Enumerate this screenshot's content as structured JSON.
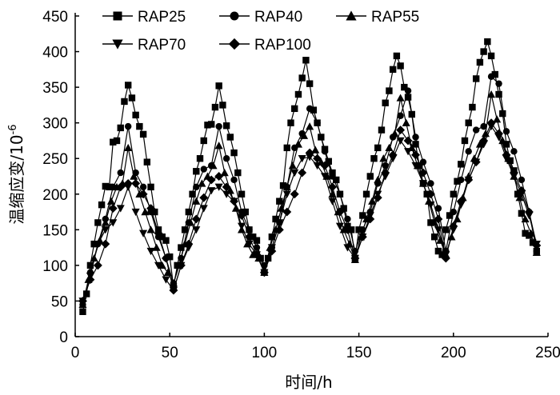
{
  "chart_data": {
    "type": "line",
    "title": "",
    "xlabel": "时间/h",
    "ylabel_main": "温缩应变/10",
    "ylabel_exp": "-6",
    "xlim": [
      0,
      250
    ],
    "ylim": [
      0,
      450
    ],
    "xticks": [
      0,
      50,
      100,
      150,
      200,
      250
    ],
    "yticks": [
      0,
      50,
      100,
      150,
      200,
      250,
      300,
      350,
      400,
      450
    ],
    "grid": false,
    "legend_position": "top-left",
    "series": [
      {
        "name": "RAP25",
        "marker": "square",
        "x": [
          4,
          6,
          8,
          10,
          12,
          14,
          16,
          18,
          20,
          22,
          24,
          26,
          28,
          30,
          32,
          34,
          36,
          38,
          40,
          42,
          44,
          46,
          48,
          50,
          52,
          54,
          56,
          58,
          60,
          62,
          64,
          66,
          68,
          70,
          72,
          74,
          76,
          78,
          80,
          82,
          84,
          86,
          88,
          90,
          92,
          94,
          96,
          98,
          100,
          102,
          104,
          106,
          108,
          110,
          112,
          114,
          116,
          118,
          120,
          122,
          124,
          126,
          128,
          130,
          132,
          134,
          136,
          138,
          140,
          142,
          144,
          146,
          148,
          150,
          152,
          154,
          156,
          158,
          160,
          162,
          164,
          166,
          168,
          170,
          172,
          174,
          176,
          178,
          180,
          182,
          184,
          186,
          188,
          190,
          192,
          194,
          196,
          198,
          200,
          202,
          204,
          206,
          208,
          210,
          212,
          214,
          216,
          218,
          220,
          222,
          224,
          226,
          228,
          230,
          232,
          234,
          236,
          238,
          240,
          242,
          244
        ],
        "y": [
          35,
          60,
          100,
          130,
          160,
          185,
          211,
          210,
          273,
          275,
          293,
          330,
          353,
          335,
          311,
          295,
          284,
          245,
          210,
          175,
          150,
          140,
          135,
          112,
          70,
          100,
          125,
          150,
          175,
          200,
          232,
          250,
          275,
          297,
          298,
          322,
          352,
          325,
          296,
          280,
          258,
          230,
          200,
          175,
          150,
          140,
          135,
          110,
          90,
          110,
          140,
          165,
          190,
          212,
          265,
          300,
          320,
          340,
          363,
          388,
          355,
          318,
          300,
          280,
          263,
          246,
          230,
          220,
          200,
          180,
          155,
          150,
          110,
          150,
          170,
          200,
          225,
          250,
          265,
          290,
          328,
          345,
          375,
          394,
          380,
          350,
          336,
          312,
          270,
          240,
          215,
          200,
          160,
          140,
          120,
          115,
          150,
          170,
          200,
          218,
          242,
          275,
          300,
          322,
          362,
          385,
          400,
          414,
          394,
          368,
          340,
          313,
          270,
          247,
          233,
          200,
          173,
          145,
          142,
          132,
          120
        ]
      },
      {
        "name": "RAP40",
        "marker": "circle",
        "x": [
          4,
          8,
          12,
          16,
          20,
          24,
          28,
          32,
          36,
          40,
          44,
          48,
          52,
          56,
          60,
          64,
          68,
          72,
          76,
          80,
          84,
          88,
          92,
          96,
          100,
          104,
          108,
          112,
          116,
          120,
          124,
          128,
          132,
          136,
          140,
          144,
          148,
          152,
          156,
          160,
          164,
          168,
          172,
          176,
          180,
          184,
          188,
          192,
          196,
          200,
          204,
          208,
          212,
          216,
          220,
          224,
          228,
          232,
          236,
          240,
          244
        ],
        "y": [
          45,
          90,
          130,
          165,
          210,
          230,
          295,
          230,
          210,
          175,
          140,
          110,
          75,
          110,
          160,
          210,
          235,
          240,
          295,
          250,
          220,
          175,
          150,
          125,
          100,
          125,
          160,
          210,
          265,
          285,
          320,
          300,
          260,
          225,
          200,
          165,
          120,
          150,
          175,
          215,
          240,
          280,
          310,
          345,
          280,
          245,
          215,
          180,
          120,
          175,
          220,
          260,
          290,
          295,
          365,
          355,
          288,
          260,
          220,
          175,
          120
        ]
      },
      {
        "name": "RAP55",
        "marker": "triangle-up",
        "x": [
          4,
          7,
          10,
          13,
          16,
          19,
          22,
          25,
          28,
          31,
          34,
          37,
          40,
          43,
          46,
          49,
          52,
          55,
          58,
          61,
          64,
          67,
          70,
          73,
          76,
          79,
          82,
          85,
          88,
          91,
          94,
          97,
          100,
          103,
          106,
          109,
          112,
          115,
          118,
          121,
          124,
          127,
          130,
          133,
          136,
          139,
          142,
          145,
          148,
          151,
          154,
          157,
          160,
          163,
          166,
          169,
          172,
          175,
          178,
          181,
          184,
          187,
          190,
          193,
          196,
          199,
          202,
          205,
          208,
          211,
          214,
          217,
          220,
          223,
          226,
          229,
          232,
          235,
          238,
          241,
          244
        ],
        "y": [
          45,
          80,
          110,
          135,
          160,
          190,
          210,
          215,
          265,
          225,
          200,
          175,
          150,
          125,
          100,
          90,
          75,
          100,
          130,
          160,
          190,
          215,
          225,
          240,
          268,
          230,
          205,
          180,
          150,
          130,
          115,
          110,
          90,
          125,
          150,
          180,
          210,
          240,
          270,
          282,
          295,
          262,
          245,
          225,
          200,
          175,
          150,
          130,
          108,
          140,
          165,
          190,
          220,
          250,
          265,
          285,
          335,
          300,
          265,
          240,
          215,
          190,
          160,
          135,
          115,
          140,
          165,
          195,
          225,
          250,
          270,
          285,
          340,
          305,
          275,
          250,
          225,
          195,
          165,
          145,
          118
        ]
      },
      {
        "name": "RAP70",
        "marker": "triangle-down",
        "x": [
          4,
          8,
          12,
          16,
          20,
          24,
          28,
          32,
          36,
          40,
          44,
          48,
          52,
          56,
          60,
          64,
          68,
          72,
          76,
          80,
          84,
          88,
          92,
          96,
          100,
          104,
          108,
          112,
          116,
          120,
          124,
          128,
          132,
          136,
          140,
          144,
          148,
          152,
          156,
          160,
          164,
          168,
          172,
          176,
          180,
          184,
          188,
          192,
          196,
          200,
          204,
          208,
          212,
          216,
          220,
          224,
          228,
          232,
          236,
          240,
          244
        ],
        "y": [
          50,
          85,
          130,
          150,
          160,
          180,
          210,
          175,
          145,
          120,
          100,
          80,
          65,
          100,
          125,
          150,
          180,
          205,
          210,
          200,
          190,
          155,
          130,
          115,
          90,
          125,
          160,
          200,
          230,
          250,
          252,
          240,
          225,
          190,
          155,
          125,
          110,
          140,
          170,
          200,
          225,
          250,
          275,
          260,
          240,
          215,
          185,
          150,
          115,
          150,
          185,
          220,
          245,
          270,
          295,
          280,
          250,
          225,
          200,
          170,
          130
        ]
      },
      {
        "name": "RAP100",
        "marker": "diamond",
        "x": [
          4,
          8,
          12,
          16,
          20,
          24,
          28,
          32,
          36,
          40,
          44,
          48,
          52,
          56,
          60,
          64,
          68,
          72,
          76,
          80,
          84,
          88,
          92,
          96,
          100,
          104,
          108,
          112,
          116,
          120,
          124,
          128,
          132,
          136,
          140,
          144,
          148,
          152,
          156,
          160,
          164,
          168,
          172,
          176,
          180,
          184,
          188,
          192,
          196,
          200,
          204,
          208,
          212,
          216,
          220,
          224,
          228,
          232,
          236,
          240,
          244
        ],
        "y": [
          50,
          80,
          100,
          130,
          180,
          210,
          215,
          215,
          200,
          180,
          145,
          110,
          65,
          100,
          130,
          165,
          195,
          220,
          225,
          210,
          190,
          170,
          140,
          115,
          90,
          120,
          150,
          175,
          200,
          230,
          258,
          250,
          240,
          210,
          175,
          150,
          110,
          140,
          165,
          195,
          230,
          255,
          290,
          275,
          255,
          230,
          200,
          165,
          110,
          155,
          190,
          220,
          245,
          275,
          300,
          285,
          255,
          230,
          205,
          175,
          128
        ]
      }
    ]
  }
}
